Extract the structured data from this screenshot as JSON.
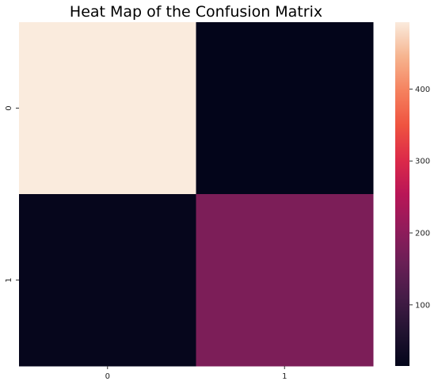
{
  "chart_data": {
    "type": "heatmap",
    "title": "Heat Map of the Confusion Matrix",
    "xlabel": "",
    "ylabel": "",
    "x_tick_labels": [
      "0",
      "1"
    ],
    "y_tick_labels": [
      "0",
      "1"
    ],
    "values": [
      [
        493,
        15
      ],
      [
        20,
        180
      ]
    ],
    "colorscale": "rocket",
    "colorbar": {
      "range": [
        15,
        493
      ],
      "ticks": [
        100,
        200,
        300,
        400
      ],
      "tick_labels": [
        "100",
        "200",
        "300",
        "400"
      ]
    },
    "grid": false,
    "annotations": false
  }
}
